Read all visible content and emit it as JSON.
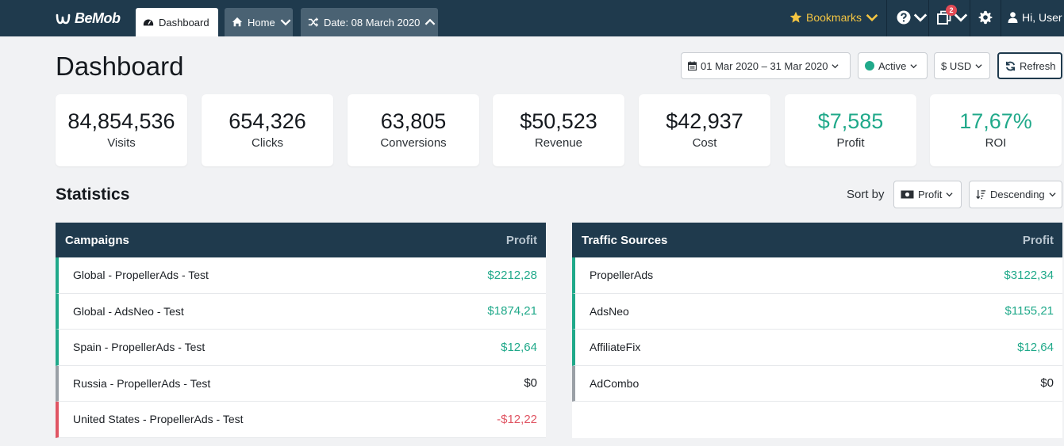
{
  "nav": {
    "logo": "BeMob",
    "tabs": [
      {
        "label": "Dashboard"
      },
      {
        "label": "Home"
      },
      {
        "label": "Date: 08 March 2020"
      }
    ],
    "bookmarks_label": "Bookmarks",
    "notification_count": "2",
    "user_label": "Hi, User"
  },
  "header": {
    "title": "Dashboard",
    "date_range": "01 Mar 2020 – 31 Mar 2020",
    "status": "Active",
    "currency": "$ USD",
    "refresh_label": "Refresh"
  },
  "stats": [
    {
      "value": "84,854,536",
      "label": "Visits"
    },
    {
      "value": "654,326",
      "label": "Clicks"
    },
    {
      "value": "63,805",
      "label": "Conversions"
    },
    {
      "value": "$50,523",
      "label": "Revenue"
    },
    {
      "value": "$42,937",
      "label": "Cost"
    },
    {
      "value": "$7,585",
      "label": "Profit"
    },
    {
      "value": "17,67%",
      "label": "ROI"
    }
  ],
  "statistics": {
    "title": "Statistics",
    "sort_by_label": "Sort by",
    "sort_field": "Profit",
    "sort_order": "Descending"
  },
  "campaigns": {
    "header": "Campaigns",
    "metric": "Profit",
    "rows": [
      {
        "name": "Global - PropellerAds - Test",
        "value": "$2212,28"
      },
      {
        "name": "Global - AdsNeo - Test",
        "value": "$1874,21"
      },
      {
        "name": "Spain - PropellerAds - Test",
        "value": "$12,64"
      },
      {
        "name": "Russia - PropellerAds - Test",
        "value": "$0"
      },
      {
        "name": "United States - PropellerAds - Test",
        "value": "-$12,22"
      }
    ]
  },
  "traffic_sources": {
    "header": "Traffic Sources",
    "metric": "Profit",
    "rows": [
      {
        "name": "PropellerAds",
        "value": "$3122,34"
      },
      {
        "name": "AdsNeo",
        "value": "$1155,21"
      },
      {
        "name": "AffiliateFix",
        "value": "$12,64"
      },
      {
        "name": "AdCombo",
        "value": "$0"
      }
    ]
  },
  "colors": {
    "nav_bg": "#1f3a4d",
    "positive": "#20a98a",
    "negative": "#e05563",
    "neutral": "#9aa0a6",
    "bookmark": "#f4c542"
  }
}
